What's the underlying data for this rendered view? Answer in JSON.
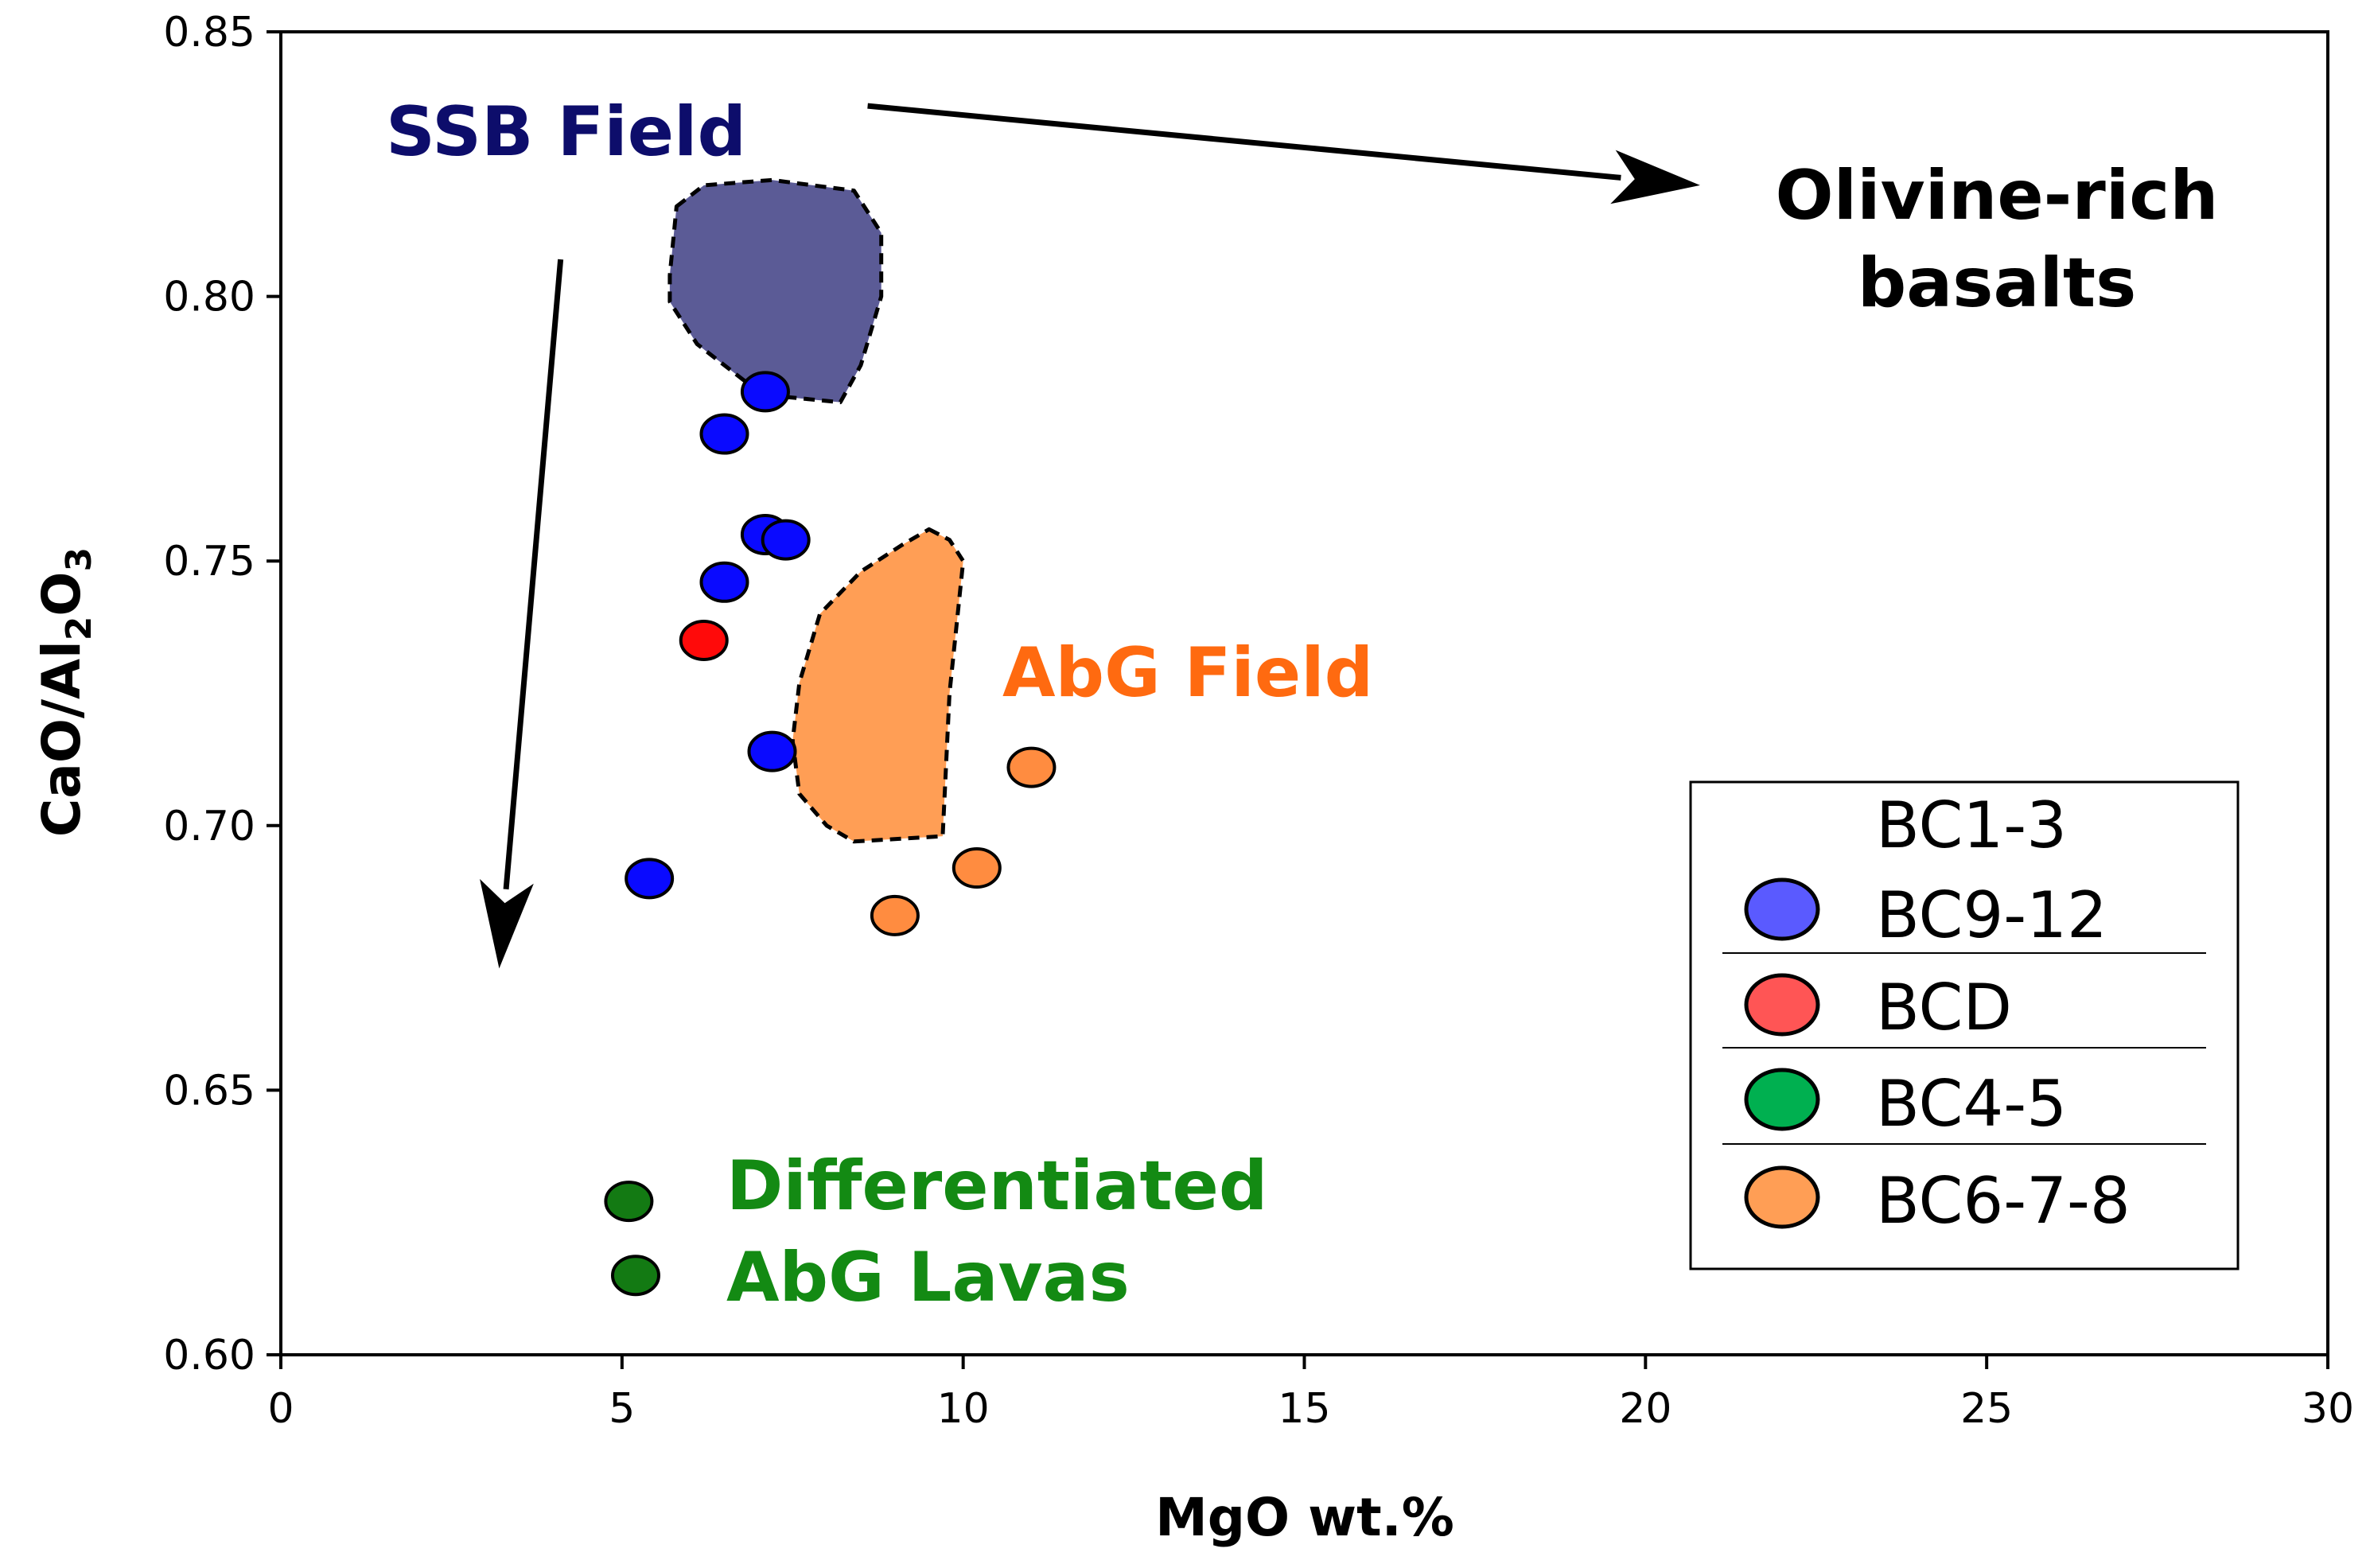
{
  "chart_data": {
    "type": "scatter",
    "title": "",
    "xlabel": "MgO wt.%",
    "ylabel_main": "CaO/Al",
    "ylabel_sub1": "2",
    "ylabel_mid": "O",
    "ylabel_sub2": "3",
    "xlim": [
      0,
      30
    ],
    "ylim": [
      0.6,
      0.85
    ],
    "xticks": [
      0,
      5,
      10,
      15,
      20,
      25,
      30
    ],
    "xtick_labels": [
      "0",
      "5",
      "10",
      "15",
      "20",
      "25",
      "30"
    ],
    "yticks": [
      0.6,
      0.65,
      0.7,
      0.75,
      0.8,
      0.85
    ],
    "ytick_labels": [
      "0.60",
      "0.65",
      "0.70",
      "0.75",
      "0.80",
      "0.85"
    ],
    "grid": false,
    "legend_position": "right",
    "legend": [
      {
        "name": "BC1-3",
        "color": null
      },
      {
        "name": "BC9-12",
        "color": "#5a5aff"
      },
      {
        "name": "BCD",
        "color": "#ff5555"
      },
      {
        "name": "BC4-5",
        "color": "#00b050"
      },
      {
        "name": "BC6-7-8",
        "color": "#ff9e55"
      }
    ],
    "series": [
      {
        "name": "BC9-12",
        "color": "#0a0aff",
        "x": [
          7.1,
          6.5,
          7.1,
          7.4,
          6.5,
          7.2,
          5.4
        ],
        "y": [
          0.782,
          0.774,
          0.755,
          0.754,
          0.746,
          0.714,
          0.69
        ]
      },
      {
        "name": "BCD",
        "color": "#ff0a0a",
        "x": [
          6.2
        ],
        "y": [
          0.735
        ]
      },
      {
        "name": "Differentiated",
        "color": "#137a13",
        "x": [
          5.1,
          5.2
        ],
        "y": [
          0.629,
          0.615
        ]
      },
      {
        "name": "BC6-7-8",
        "color": "#ff8c40",
        "x": [
          11.0,
          10.2,
          9.0
        ],
        "y": [
          0.711,
          0.692,
          0.683
        ]
      }
    ],
    "fields": [
      {
        "name": "SSB Field",
        "fill": "#5b5b96",
        "x": [
          5.8,
          6.2,
          7.2,
          8.4,
          8.8,
          8.8,
          8.5,
          8.2,
          7.4,
          6.8,
          6.1,
          5.7,
          5.7
        ],
        "y": [
          0.817,
          0.821,
          0.822,
          0.82,
          0.812,
          0.8,
          0.787,
          0.78,
          0.781,
          0.784,
          0.791,
          0.799,
          0.804
        ]
      },
      {
        "name": "AbG Field",
        "fill": "#ff9e55",
        "x": [
          9.5,
          9.8,
          10.0,
          9.8,
          9.7,
          8.4,
          8.0,
          7.6,
          7.5,
          7.6,
          7.9,
          8.5,
          9.1
        ],
        "y": [
          0.756,
          0.754,
          0.75,
          0.725,
          0.698,
          0.697,
          0.7,
          0.706,
          0.716,
          0.727,
          0.74,
          0.748,
          0.753
        ]
      }
    ],
    "annotations": [
      {
        "text": "SSB Field",
        "color": "#0d0d6b"
      },
      {
        "text": "AbG Field",
        "color": "#ff6a10"
      },
      {
        "text": "Olivine-rich",
        "color": "#000000"
      },
      {
        "text": "basalts",
        "color": "#000000"
      },
      {
        "text": "Differentiated",
        "color": "#138a13"
      },
      {
        "text": "AbG Lavas",
        "color": "#138a13"
      }
    ],
    "arrows": [
      {
        "from": [
          8.6,
          0.836
        ],
        "to": [
          20.8,
          0.821
        ]
      },
      {
        "from": [
          4.1,
          0.807
        ],
        "to": [
          3.2,
          0.673
        ]
      }
    ]
  }
}
